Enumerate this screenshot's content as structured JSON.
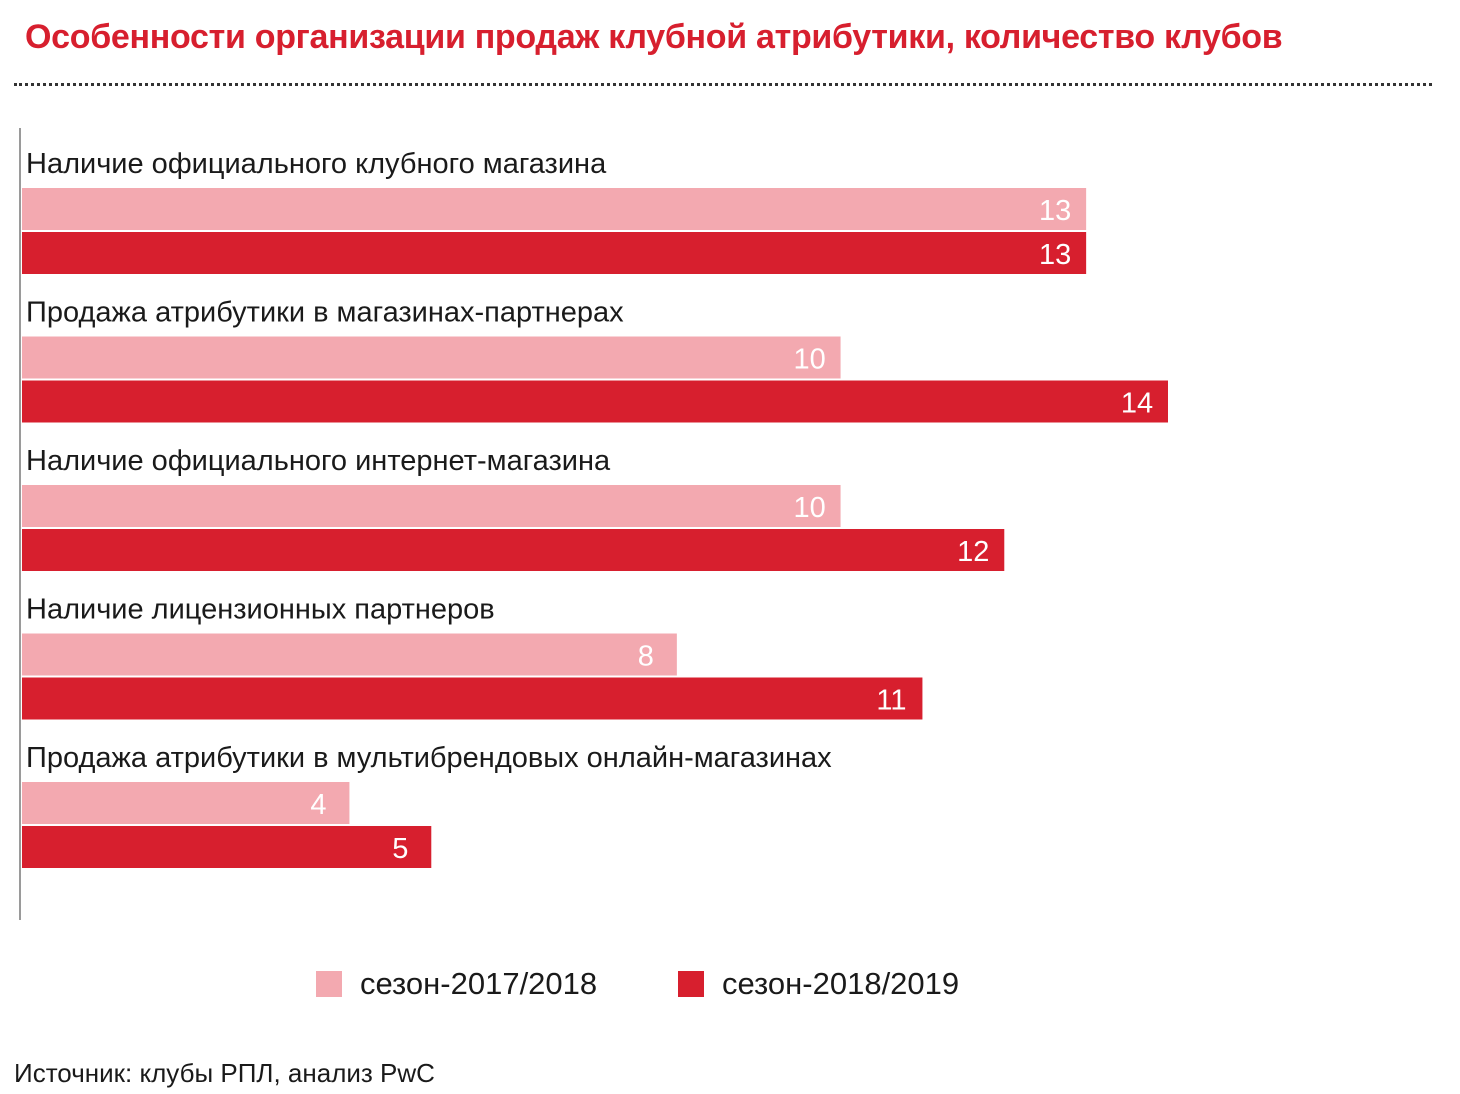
{
  "title": "Особенности организации продаж клубной атрибутики, количество клубов",
  "source": "Источник: клубы РПЛ, анализ PwC",
  "colors": {
    "title": "#d71f2e",
    "season1": "#f3a9b0",
    "season2": "#d71f2e"
  },
  "chart_data": {
    "type": "bar",
    "orientation": "horizontal",
    "title": "Особенности организации продаж клубной атрибутики, количество клубов",
    "categories": [
      "Наличие официального клубного магазина",
      "Продажа атрибутики в магазинах-партнерах",
      "Наличие официального интернет-магазина",
      "Наличие лицензионных партнеров",
      "Продажа атрибутики в мультибрендовых онлайн-магазинах"
    ],
    "series": [
      {
        "name": "сезон-2017/2018",
        "values": [
          13,
          10,
          10,
          8,
          4
        ]
      },
      {
        "name": "сезон-2018/2019",
        "values": [
          13,
          14,
          12,
          11,
          5
        ]
      }
    ],
    "xlim": [
      0,
      14
    ],
    "grid": false,
    "legend_position": "bottom"
  }
}
